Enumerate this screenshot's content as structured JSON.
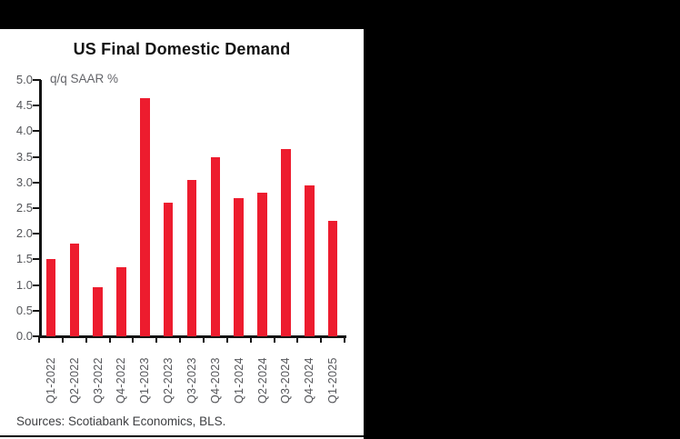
{
  "colors": {
    "background": "#000000",
    "panel": "#ffffff",
    "bar_red": "#ED1C2E",
    "axis": "#141414",
    "tick_text": "#55565a",
    "source_text": "#3f4043"
  },
  "chart_data": {
    "type": "bar",
    "title": "US Final Domestic Demand",
    "unit_label": "q/q SAAR %",
    "categories": [
      "Q1-2022",
      "Q2-2022",
      "Q3-2022",
      "Q4-2022",
      "Q1-2023",
      "Q2-2023",
      "Q3-2023",
      "Q4-2023",
      "Q1-2024",
      "Q2-2024",
      "Q3-2024",
      "Q4-2024",
      "Q1-2025"
    ],
    "values": [
      1.5,
      1.8,
      0.95,
      1.35,
      4.65,
      2.6,
      3.05,
      3.5,
      2.7,
      2.8,
      3.65,
      2.95,
      2.25
    ],
    "ylim": [
      0.0,
      5.0
    ],
    "ytick_labels": [
      "0.0",
      "0.5",
      "1.0",
      "1.5",
      "2.0",
      "2.5",
      "3.0",
      "3.5",
      "4.0",
      "4.5",
      "5.0"
    ],
    "grid": false,
    "legend": null,
    "bar_color": "#ED1C2E",
    "source_note": "Sources: Scotiabank Economics, BLS."
  }
}
